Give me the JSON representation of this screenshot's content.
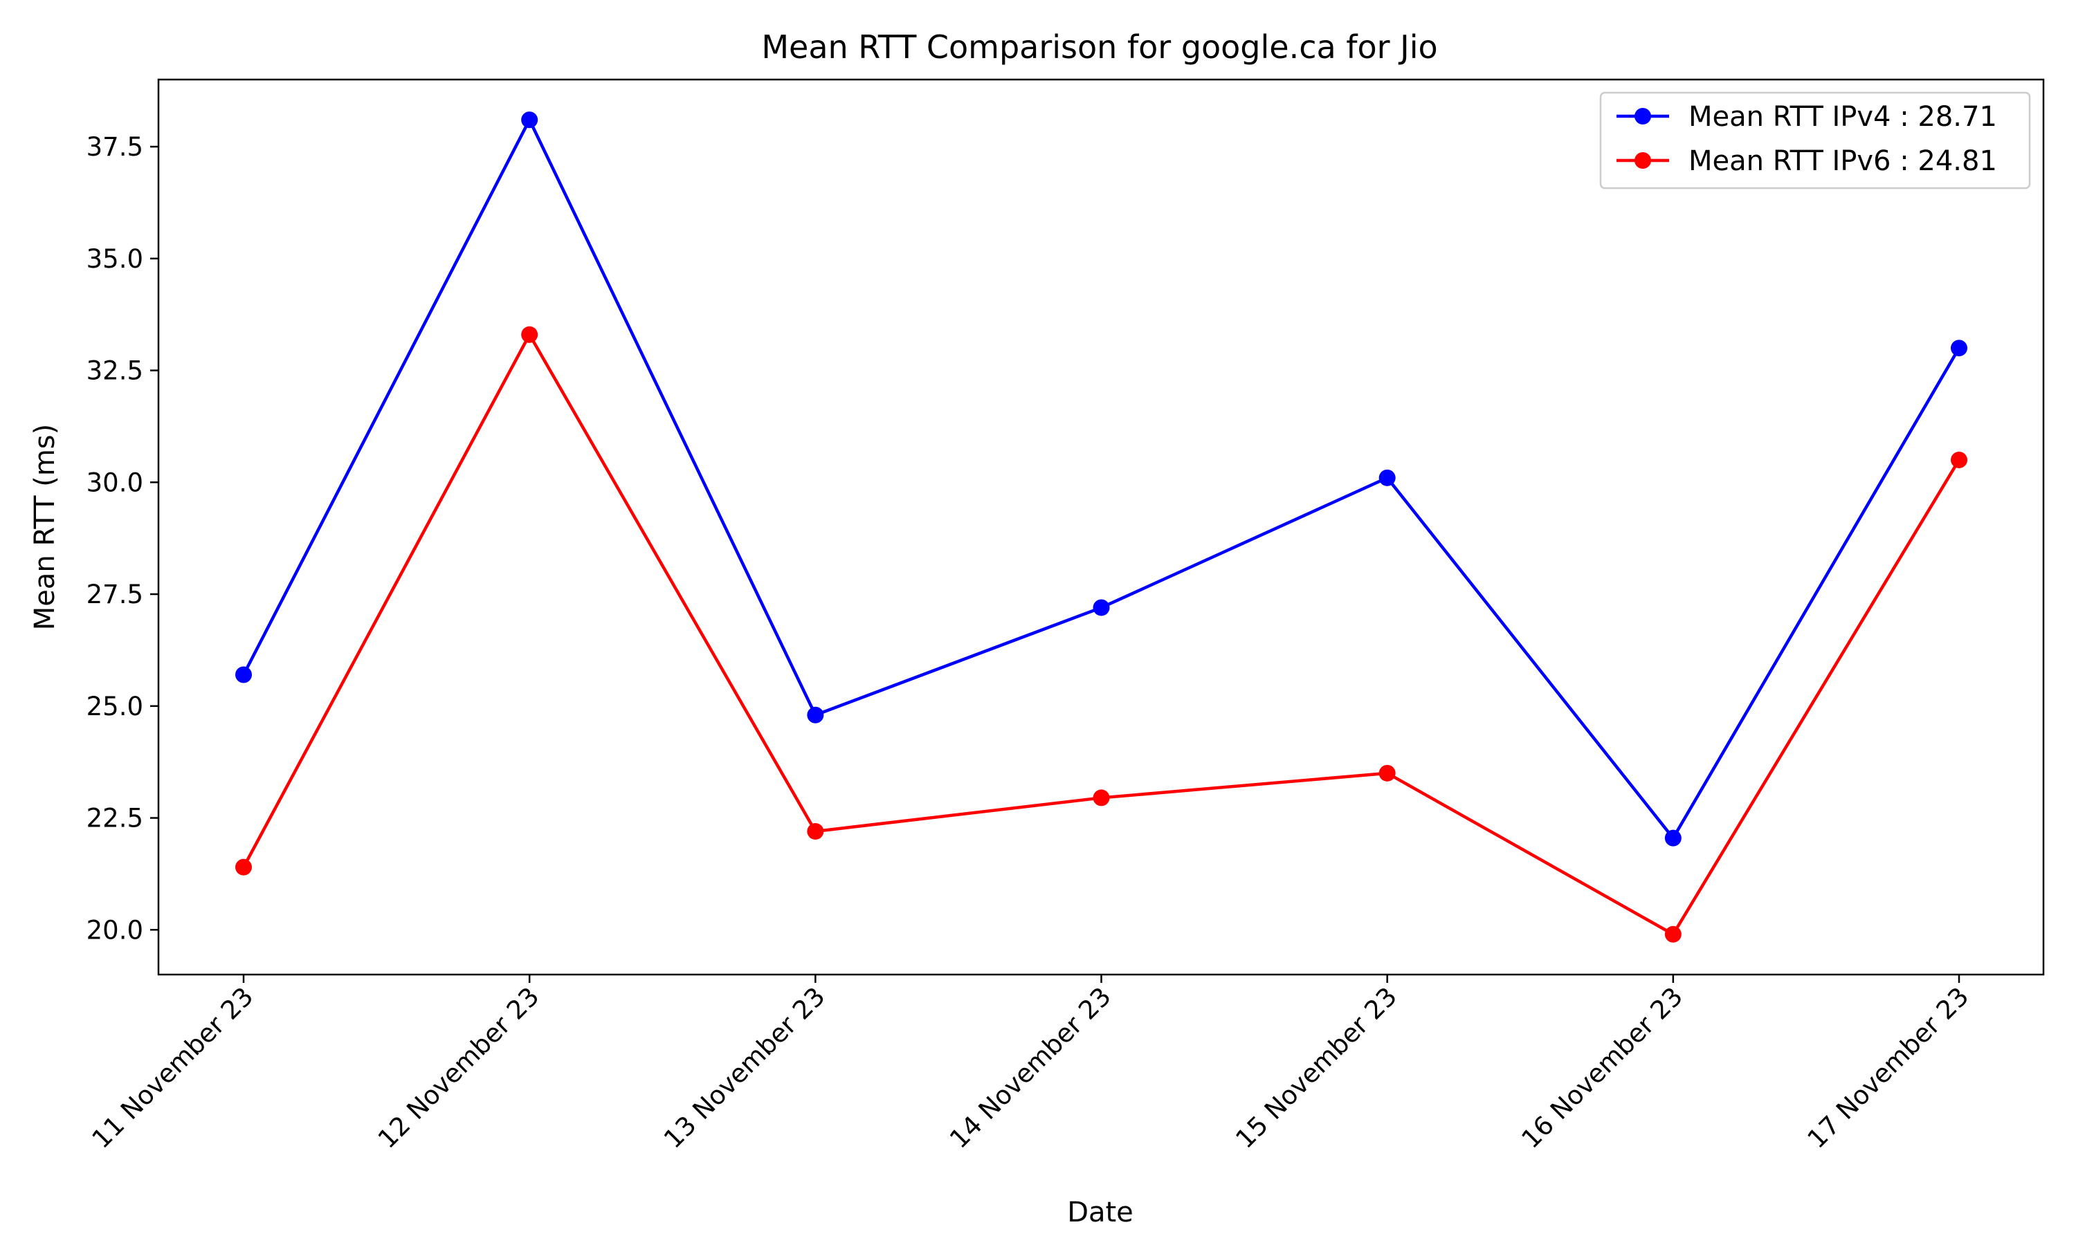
{
  "chart_data": {
    "type": "line",
    "title": "Mean RTT Comparison for google.ca for Jio",
    "xlabel": "Date",
    "ylabel": "Mean RTT (ms)",
    "categories": [
      "11 November 23",
      "12 November 23",
      "13 November 23",
      "14 November 23",
      "15 November 23",
      "16 November 23",
      "17 November 23"
    ],
    "series": [
      {
        "name": "Mean RTT IPv4 : 28.71",
        "color": "#0000ff",
        "values": [
          25.7,
          38.1,
          24.8,
          27.2,
          30.1,
          22.05,
          33.0
        ]
      },
      {
        "name": "Mean RTT IPv6 : 24.81",
        "color": "#ff0000",
        "values": [
          21.4,
          33.3,
          22.2,
          22.95,
          23.5,
          19.9,
          30.5
        ]
      }
    ],
    "ylim": [
      19.0,
      39.0
    ],
    "yticks": [
      "20.0",
      "22.5",
      "25.0",
      "27.5",
      "30.0",
      "32.5",
      "35.0",
      "37.5"
    ],
    "grid": false,
    "legend": "top-right"
  }
}
